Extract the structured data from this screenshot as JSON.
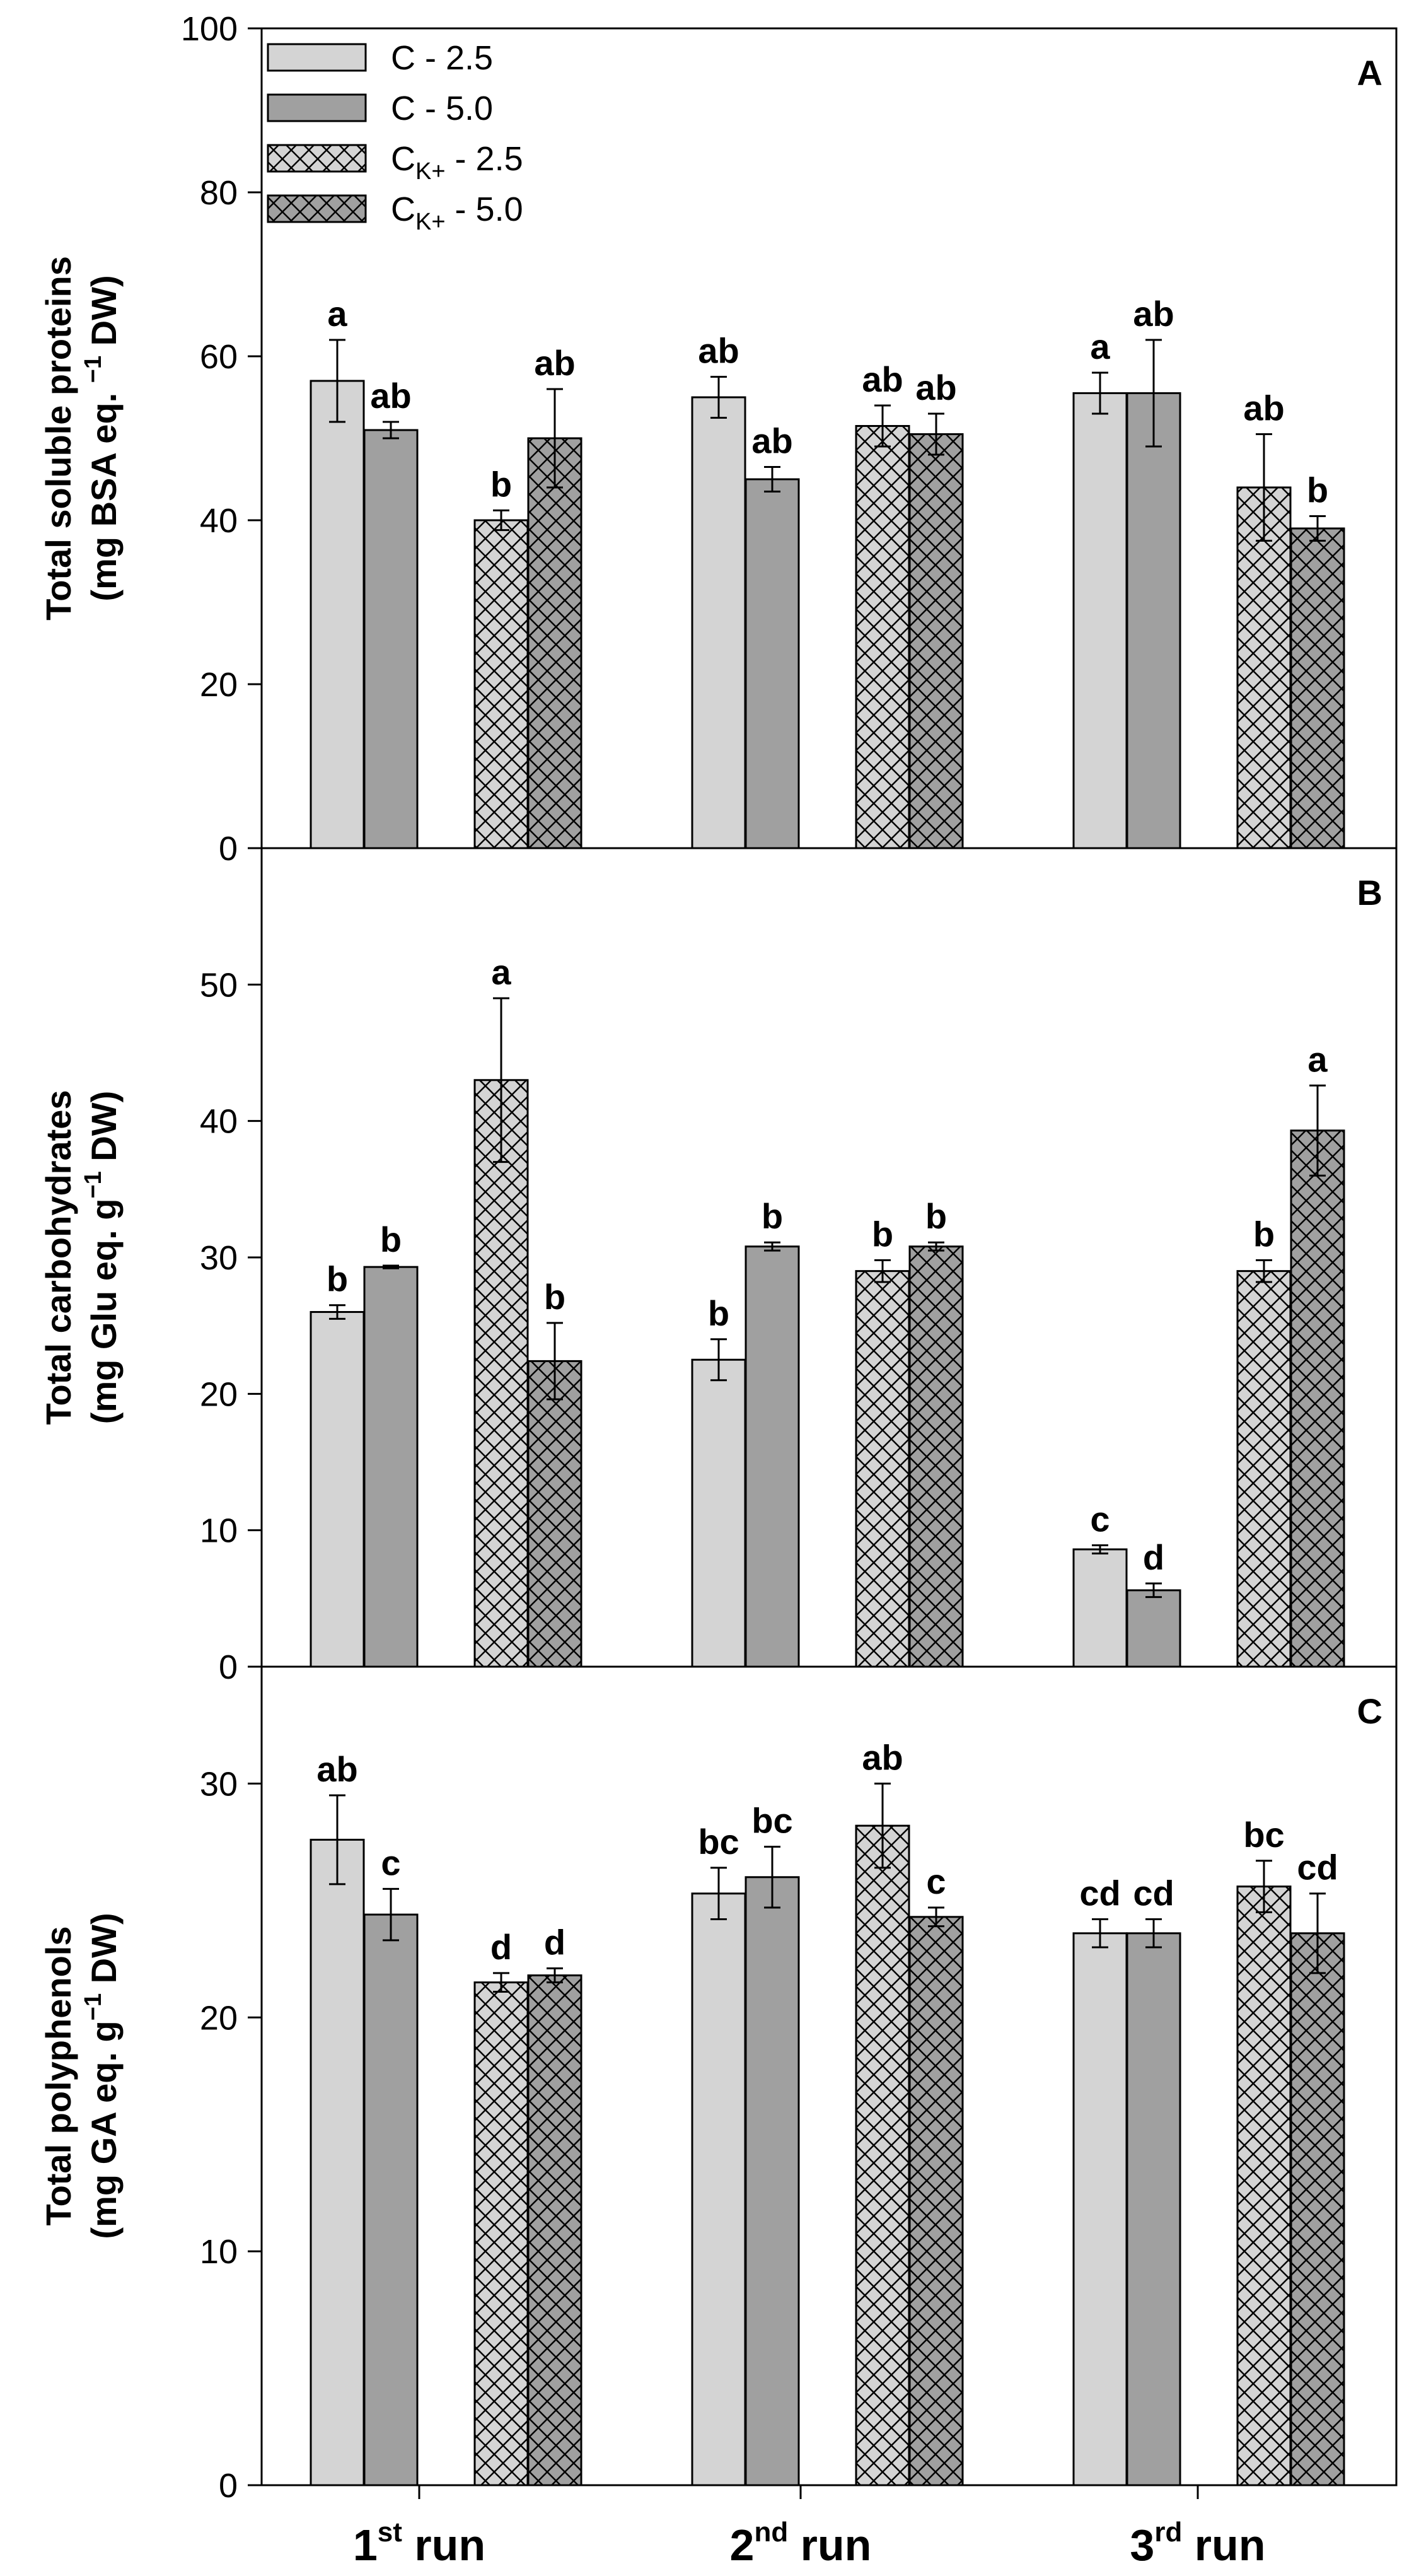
{
  "chart_data": {
    "type": "bar",
    "groups": [
      {
        "base": "1",
        "sup": "st",
        "suffix": " run"
      },
      {
        "base": "2",
        "sup": "nd",
        "suffix": " run"
      },
      {
        "base": "3",
        "sup": "rd",
        "suffix": " run"
      }
    ],
    "legend": [
      {
        "base": "C",
        "sub": "",
        "rest": " - 2.5",
        "fill": "#d4d4d4",
        "hatch": false
      },
      {
        "base": "C",
        "sub": "",
        "rest": " - 5.0",
        "fill": "#a0a0a0",
        "hatch": false
      },
      {
        "base": "C",
        "sub": "K+",
        "rest": " - 2.5",
        "fill": "#d4d4d4",
        "hatch": true
      },
      {
        "base": "C",
        "sub": "K+",
        "rest": " - 5.0",
        "fill": "#a0a0a0",
        "hatch": true
      }
    ],
    "panels": [
      {
        "letter": "A",
        "ylabel_line1": "Total soluble proteins",
        "ylabel_line2_pre": "(mg BSA eq. ",
        "ylabel_line2_sup": "−1",
        "ylabel_line2_post": " DW)",
        "ylim": [
          0,
          100
        ],
        "yticks": [
          0,
          20,
          40,
          60,
          80,
          100
        ],
        "series": [
          {
            "values": [
              57,
              55,
              55.5
            ],
            "errors": [
              5,
              2.5,
              2.5
            ],
            "letters": [
              "a",
              "ab",
              "a"
            ]
          },
          {
            "values": [
              51,
              45,
              55.5
            ],
            "errors": [
              1,
              1.5,
              6.5
            ],
            "letters": [
              "ab",
              "ab",
              "ab"
            ]
          },
          {
            "values": [
              40,
              51.5,
              44
            ],
            "errors": [
              1.2,
              2.5,
              6.5
            ],
            "letters": [
              "b",
              "ab",
              "ab"
            ]
          },
          {
            "values": [
              50,
              50.5,
              39
            ],
            "errors": [
              6,
              2.5,
              1.5
            ],
            "letters": [
              "ab",
              "ab",
              "b"
            ]
          }
        ]
      },
      {
        "letter": "B",
        "ylabel_line1": "Total carbohydrates",
        "ylabel_line2_pre": "(mg Glu eq. g",
        "ylabel_line2_sup": "−1",
        "ylabel_line2_post": " DW)",
        "ylim": [
          0,
          60
        ],
        "yticks": [
          0,
          10,
          20,
          30,
          40,
          50
        ],
        "series": [
          {
            "values": [
              26,
              22.5,
              8.6
            ],
            "errors": [
              0.5,
              1.5,
              0.3
            ],
            "letters": [
              "b",
              "b",
              "c"
            ]
          },
          {
            "values": [
              29.3,
              30.8,
              5.6
            ],
            "errors": [
              0.1,
              0.3,
              0.5
            ],
            "letters": [
              "b",
              "b",
              "d"
            ]
          },
          {
            "values": [
              43,
              29,
              29
            ],
            "errors": [
              6,
              0.8,
              0.8
            ],
            "letters": [
              "a",
              "b",
              "b"
            ]
          },
          {
            "values": [
              22.4,
              30.8,
              39.3
            ],
            "errors": [
              2.8,
              0.3,
              3.3
            ],
            "letters": [
              "b",
              "b",
              "a"
            ]
          }
        ]
      },
      {
        "letter": "C",
        "ylabel_line1": "Total polyphenols",
        "ylabel_line2_pre": "(mg GA eq. g",
        "ylabel_line2_sup": "−1",
        "ylabel_line2_post": " DW)",
        "ylim": [
          0,
          35
        ],
        "yticks": [
          0,
          10,
          20,
          30
        ],
        "series": [
          {
            "values": [
              27.6,
              25.3,
              23.6
            ],
            "errors": [
              1.9,
              1.1,
              0.6
            ],
            "letters": [
              "ab",
              "bc",
              "cd"
            ]
          },
          {
            "values": [
              24.4,
              26,
              23.6
            ],
            "errors": [
              1.1,
              1.3,
              0.6
            ],
            "letters": [
              "c",
              "bc",
              "cd"
            ]
          },
          {
            "values": [
              21.5,
              28.2,
              25.6
            ],
            "errors": [
              0.4,
              1.8,
              1.1
            ],
            "letters": [
              "d",
              "ab",
              "bc"
            ]
          },
          {
            "values": [
              21.8,
              24.3,
              23.6
            ],
            "errors": [
              0.3,
              0.4,
              1.7
            ],
            "letters": [
              "d",
              "c",
              "cd"
            ]
          }
        ]
      }
    ]
  }
}
